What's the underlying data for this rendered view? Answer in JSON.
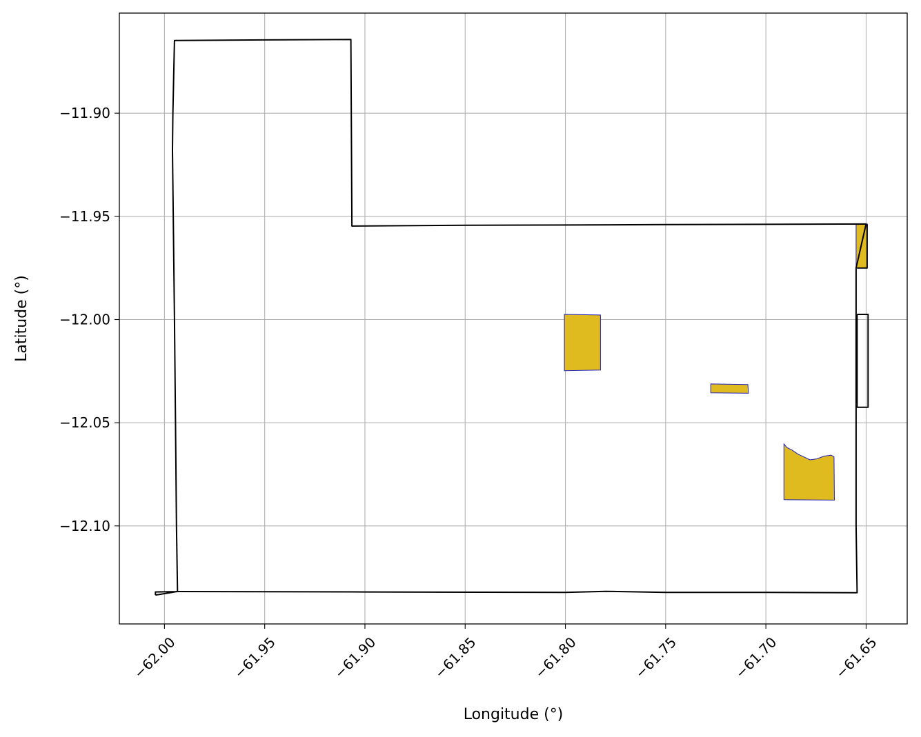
{
  "chart_data": {
    "type": "map",
    "title": "",
    "xlabel": "Longitude (°)",
    "ylabel": "Latitude (°)",
    "xlim": [
      -62.0225,
      -61.6295
    ],
    "ylim": [
      -12.1475,
      -11.8515
    ],
    "grid": true,
    "x_ticks": [
      -62.0,
      -61.95,
      -61.9,
      -61.85,
      -61.8,
      -61.75,
      -61.7,
      -61.65
    ],
    "x_tick_labels": [
      "−62.00",
      "−61.95",
      "−61.90",
      "−61.85",
      "−61.80",
      "−61.75",
      "−61.70",
      "−61.65"
    ],
    "y_ticks": [
      -11.9,
      -11.95,
      -12.0,
      -12.05,
      -12.1
    ],
    "y_tick_labels": [
      "−11.90",
      "−11.95",
      "−12.00",
      "−12.05",
      "−12.10"
    ],
    "colors": {
      "boundary": "#000000",
      "fill": "#dfbb1f",
      "fill_edge": "#1f1fbf",
      "grid": "#b0b0b0"
    },
    "boundaries": [
      {
        "name": "boundary-main",
        "coords": [
          [
            -62.0045,
            -12.1335
          ],
          [
            -62.0045,
            -12.132
          ],
          [
            -61.993,
            -12.1318
          ],
          [
            -61.9,
            -12.132
          ],
          [
            -61.8,
            -12.1322
          ],
          [
            -61.78,
            -12.1317
          ],
          [
            -61.75,
            -12.1322
          ],
          [
            -61.7,
            -12.1322
          ],
          [
            -61.6545,
            -12.1324
          ],
          [
            -61.655,
            -12.1
          ],
          [
            -61.655,
            -12.05
          ],
          [
            -61.655,
            -11.975
          ],
          [
            -61.65,
            -11.9537
          ],
          [
            -61.75,
            -11.954
          ],
          [
            -61.8,
            -11.9542
          ],
          [
            -61.85,
            -11.9543
          ],
          [
            -61.9065,
            -11.9547
          ],
          [
            -61.907,
            -11.8643
          ],
          [
            -61.95,
            -11.8645
          ],
          [
            -61.995,
            -11.8648
          ],
          [
            -61.9958,
            -11.9
          ],
          [
            -61.996,
            -11.918
          ],
          [
            -61.9955,
            -11.96
          ],
          [
            -61.995,
            -12.0
          ],
          [
            -61.9945,
            -12.05
          ],
          [
            -61.994,
            -12.1
          ],
          [
            -61.9935,
            -12.1318
          ],
          [
            -62.0045,
            -12.1335
          ]
        ]
      },
      {
        "name": "boundary-east-strip",
        "coords": [
          [
            -61.6545,
            -11.975
          ],
          [
            -61.6495,
            -11.975
          ],
          [
            -61.6495,
            -11.9537
          ]
        ]
      },
      {
        "name": "boundary-east-rect",
        "coords": [
          [
            -61.6545,
            -11.9975
          ],
          [
            -61.649,
            -11.9975
          ],
          [
            -61.649,
            -12.0425
          ],
          [
            -61.6545,
            -12.0425
          ],
          [
            -61.6545,
            -11.9975
          ]
        ]
      }
    ],
    "filled_regions": [
      {
        "name": "region-west",
        "coords": [
          [
            -61.8005,
            -11.9975
          ],
          [
            -61.7825,
            -11.9978
          ],
          [
            -61.7825,
            -12.0245
          ],
          [
            -61.8005,
            -12.0248
          ],
          [
            -61.8005,
            -11.9975
          ]
        ]
      },
      {
        "name": "region-middle",
        "coords": [
          [
            -61.7275,
            -12.0312
          ],
          [
            -61.709,
            -12.0315
          ],
          [
            -61.7087,
            -12.0357
          ],
          [
            -61.7275,
            -12.0355
          ],
          [
            -61.7275,
            -12.0312
          ]
        ]
      },
      {
        "name": "region-southeast",
        "coords": [
          [
            -61.691,
            -12.0603
          ],
          [
            -61.6895,
            -12.062
          ],
          [
            -61.687,
            -12.0632
          ],
          [
            -61.684,
            -12.0652
          ],
          [
            -61.6805,
            -12.0668
          ],
          [
            -61.678,
            -12.068
          ],
          [
            -61.6745,
            -12.0675
          ],
          [
            -61.671,
            -12.0662
          ],
          [
            -61.6675,
            -12.0657
          ],
          [
            -61.666,
            -12.0665
          ],
          [
            -61.6658,
            -12.0875
          ],
          [
            -61.691,
            -12.0873
          ],
          [
            -61.691,
            -12.0603
          ]
        ]
      },
      {
        "name": "region-east-strip",
        "coords": [
          [
            -61.655,
            -11.954
          ],
          [
            -61.6495,
            -11.9537
          ],
          [
            -61.6495,
            -11.975
          ],
          [
            -61.655,
            -11.975
          ],
          [
            -61.655,
            -11.954
          ]
        ]
      }
    ]
  }
}
